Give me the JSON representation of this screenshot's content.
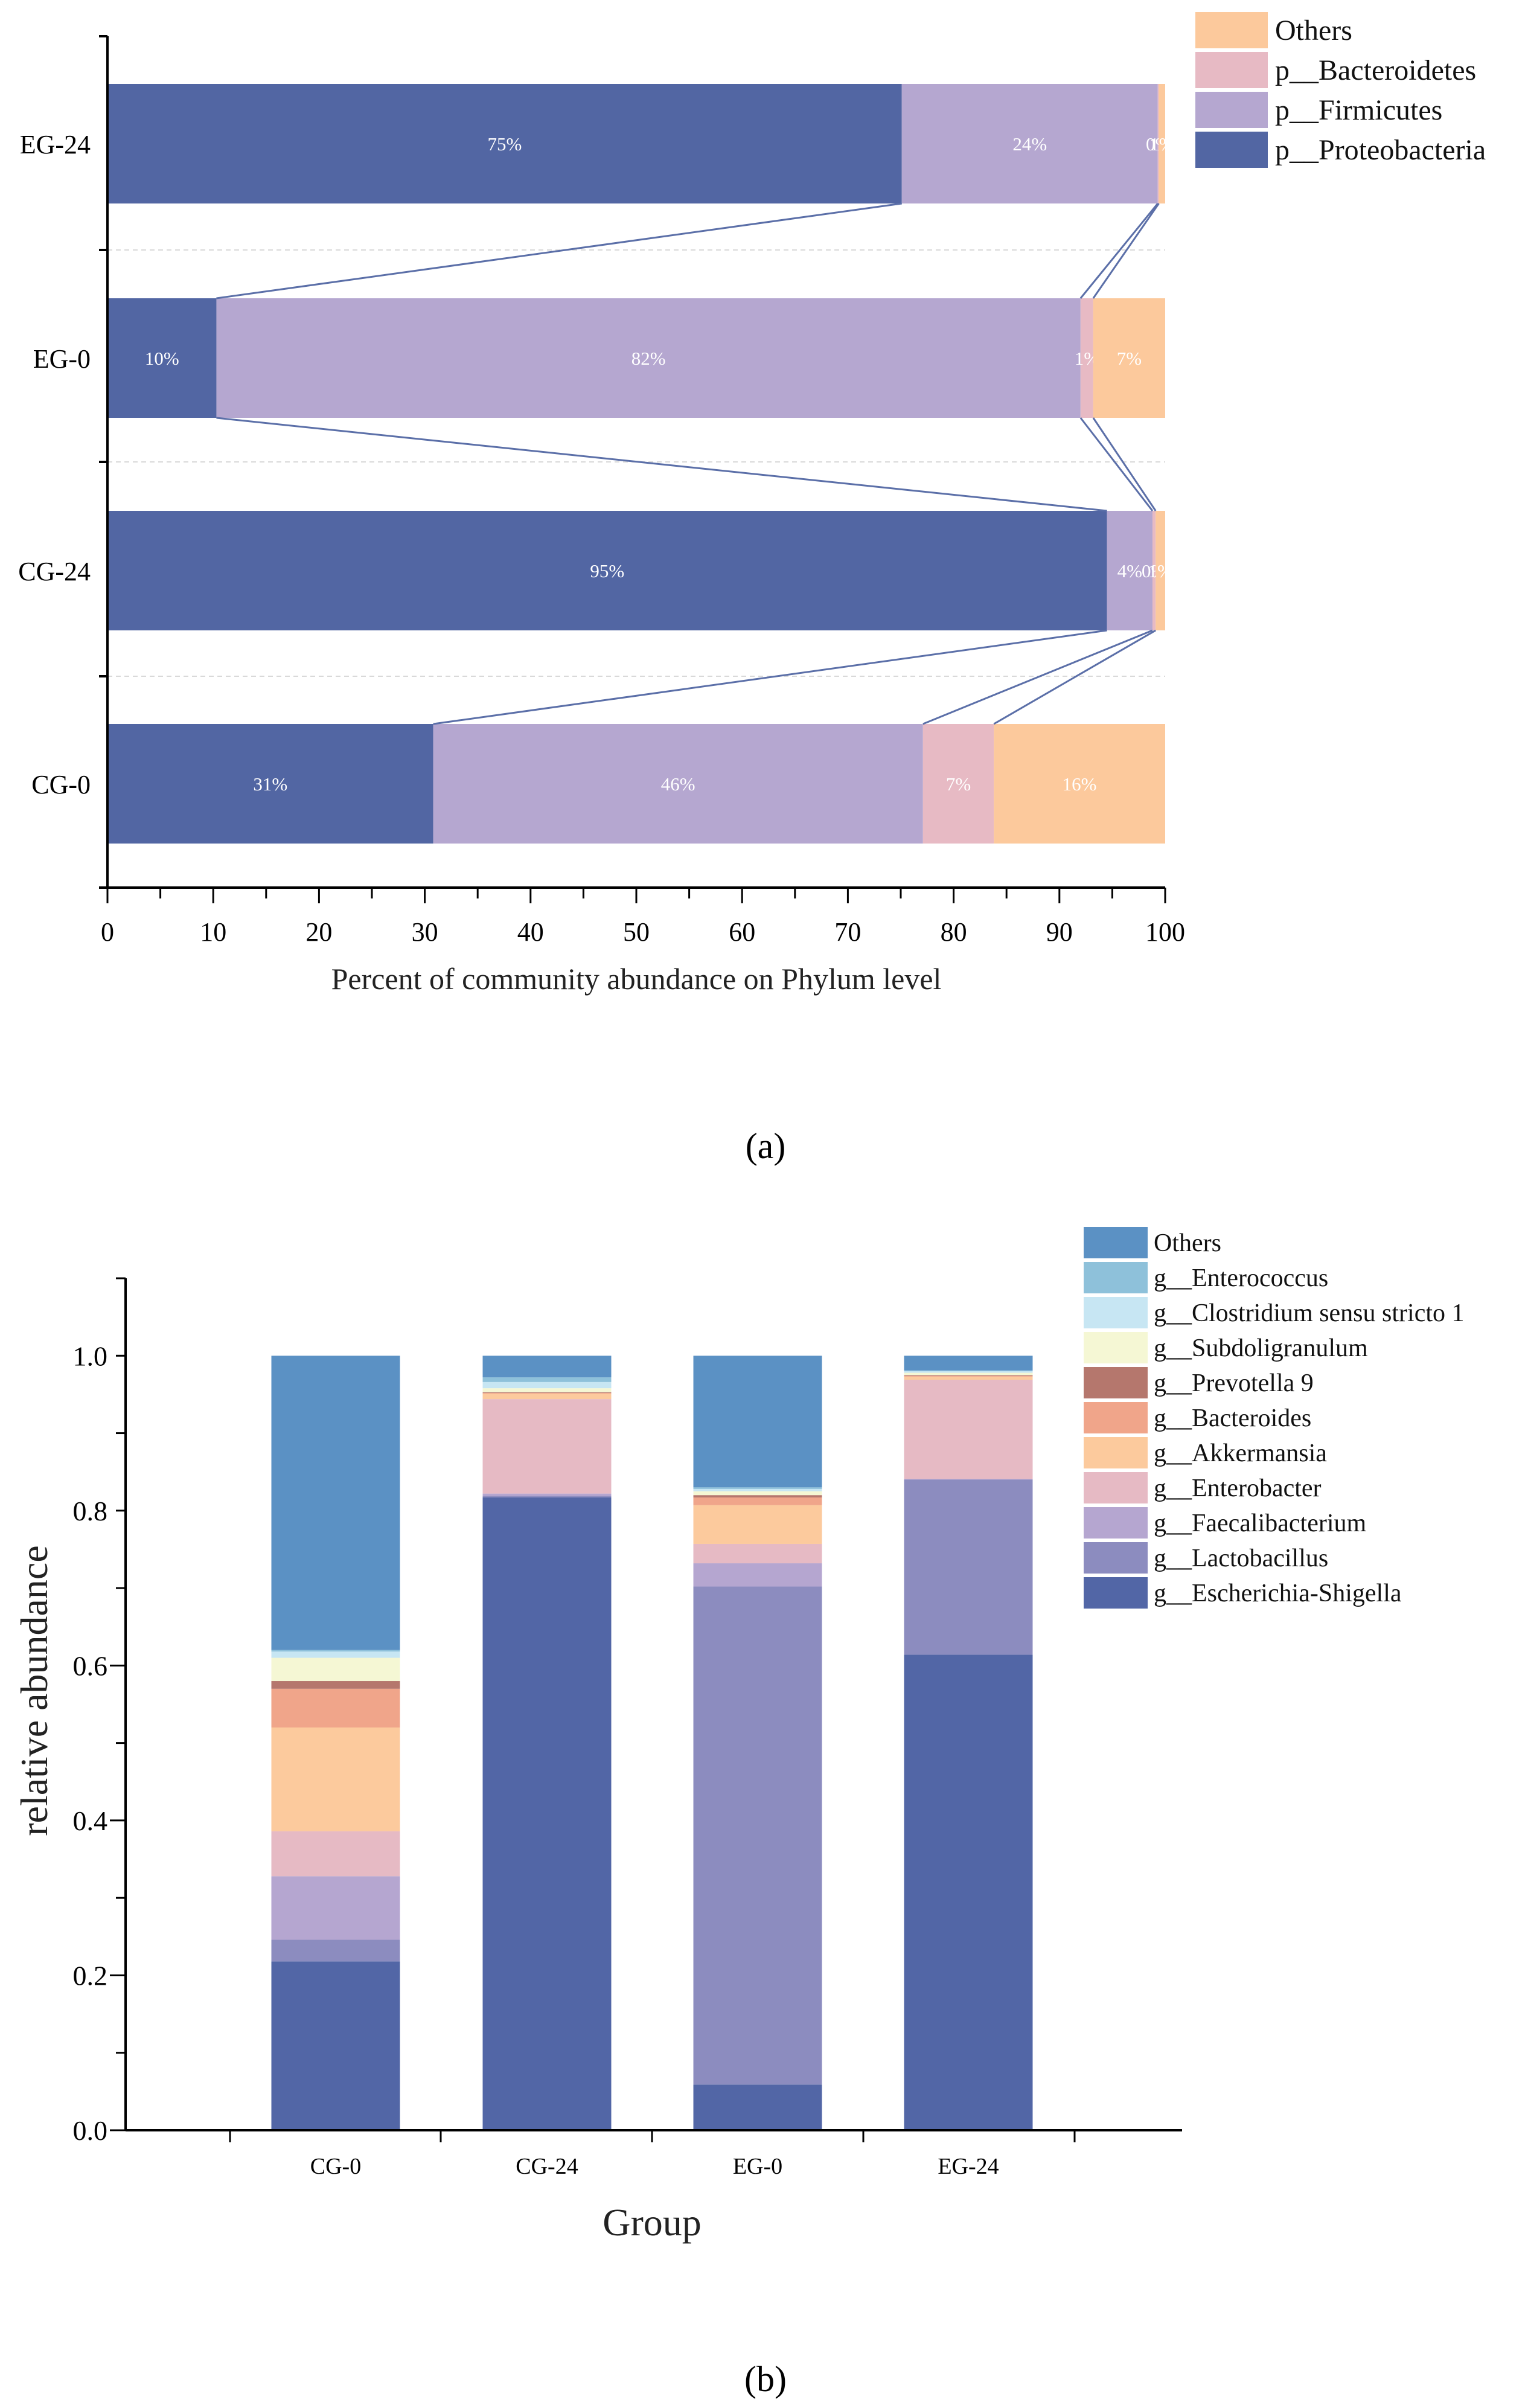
{
  "chart_data": [
    {
      "type": "bar",
      "orientation": "horizontal",
      "stacked": true,
      "panel_label": "a",
      "title": "",
      "xlabel": "Percent of community abundance on Phylum level",
      "ylabel": "",
      "xlim": [
        0,
        100
      ],
      "x_ticks": [
        "0",
        "10",
        "20",
        "30",
        "40",
        "50",
        "60",
        "70",
        "80",
        "90",
        "100"
      ],
      "categories": [
        "CG-0",
        "CG-24",
        "EG-0",
        "EG-24"
      ],
      "series": [
        {
          "name": "p__Proteobacteria",
          "color": "#5266a3",
          "values": [
            30.8,
            94.5,
            10.3,
            75.1
          ],
          "labels": [
            "31%",
            "95%",
            "10%",
            "75%"
          ]
        },
        {
          "name": "p__Firmicutes",
          "color": "#b5a7d0",
          "values": [
            46.3,
            4.3,
            81.7,
            24.2
          ],
          "labels": [
            "46%",
            "4%",
            "82%",
            "24%"
          ]
        },
        {
          "name": "p__Bacteroidetes",
          "color": "#e7bac4",
          "values": [
            6.7,
            0.3,
            1.2,
            0.1
          ],
          "labels": [
            "7%",
            "0%",
            "1%",
            "0%"
          ]
        },
        {
          "name": "Others",
          "color": "#fcc99c",
          "values": [
            16.2,
            0.9,
            6.8,
            0.6
          ],
          "labels": [
            "16%",
            "1%",
            "7%",
            "1%"
          ]
        }
      ],
      "legend": [
        "Others",
        "p__Bacteroidetes",
        "p__Firmicutes",
        "p__Proteobacteria"
      ],
      "legend_position": "top-right",
      "connector_lines": true
    },
    {
      "type": "bar",
      "orientation": "vertical",
      "stacked": true,
      "panel_label": "b",
      "title": "",
      "xlabel": "Group",
      "ylabel": "relative abundance",
      "ylim": [
        0,
        1.1
      ],
      "y_ticks": [
        "0.0",
        "0.2",
        "0.4",
        "0.6",
        "0.8",
        "1.0"
      ],
      "categories": [
        "CG-0",
        "CG-24",
        "EG-0",
        "EG-24"
      ],
      "series": [
        {
          "name": "g__Escherichia-Shigella",
          "color": "#5266a6",
          "values": [
            0.218,
            0.817,
            0.059,
            0.614
          ]
        },
        {
          "name": "g__Lactobacillus",
          "color": "#8c8cbf",
          "values": [
            0.028,
            0.002,
            0.643,
            0.226
          ]
        },
        {
          "name": "g__Faecalibacterium",
          "color": "#b5a6d0",
          "values": [
            0.082,
            0.003,
            0.03,
            0.001
          ]
        },
        {
          "name": "g__Enterobacter",
          "color": "#e6bac4",
          "values": [
            0.058,
            0.122,
            0.025,
            0.128
          ]
        },
        {
          "name": "g__Akkermansia",
          "color": "#fcca9d",
          "values": [
            0.134,
            0.007,
            0.05,
            0.004
          ]
        },
        {
          "name": "g__Bacteroides",
          "color": "#f0a58a",
          "values": [
            0.05,
            0.001,
            0.01,
            0.001
          ]
        },
        {
          "name": "g__Prevotella 9",
          "color": "#b5776d",
          "values": [
            0.01,
            0.001,
            0.003,
            0.001
          ]
        },
        {
          "name": "g__Subdoligranulum",
          "color": "#f5f7d4",
          "values": [
            0.03,
            0.005,
            0.005,
            0.003
          ]
        },
        {
          "name": "g__Clostridium sensu stricto 1",
          "color": "#c7e6f3",
          "values": [
            0.008,
            0.008,
            0.003,
            0.002
          ]
        },
        {
          "name": "g__Enterococcus",
          "color": "#8ec1da",
          "values": [
            0.002,
            0.006,
            0.002,
            0.001
          ]
        },
        {
          "name": "Others",
          "color": "#5b91c4",
          "values": [
            0.38,
            0.028,
            0.17,
            0.019
          ]
        }
      ],
      "legend": [
        "Others",
        "g__Enterococcus",
        "g__Clostridium sensu stricto 1",
        "g__Subdoligranulum",
        "g__Prevotella 9",
        "g__Bacteroides",
        "g__Akkermansia",
        "g__Enterobacter",
        "g__Faecalibacterium",
        "g__Lactobacillus",
        "g__Escherichia-Shigella"
      ],
      "legend_position": "top-right"
    }
  ],
  "captions": {
    "a": "(a)",
    "b": "(b)"
  }
}
